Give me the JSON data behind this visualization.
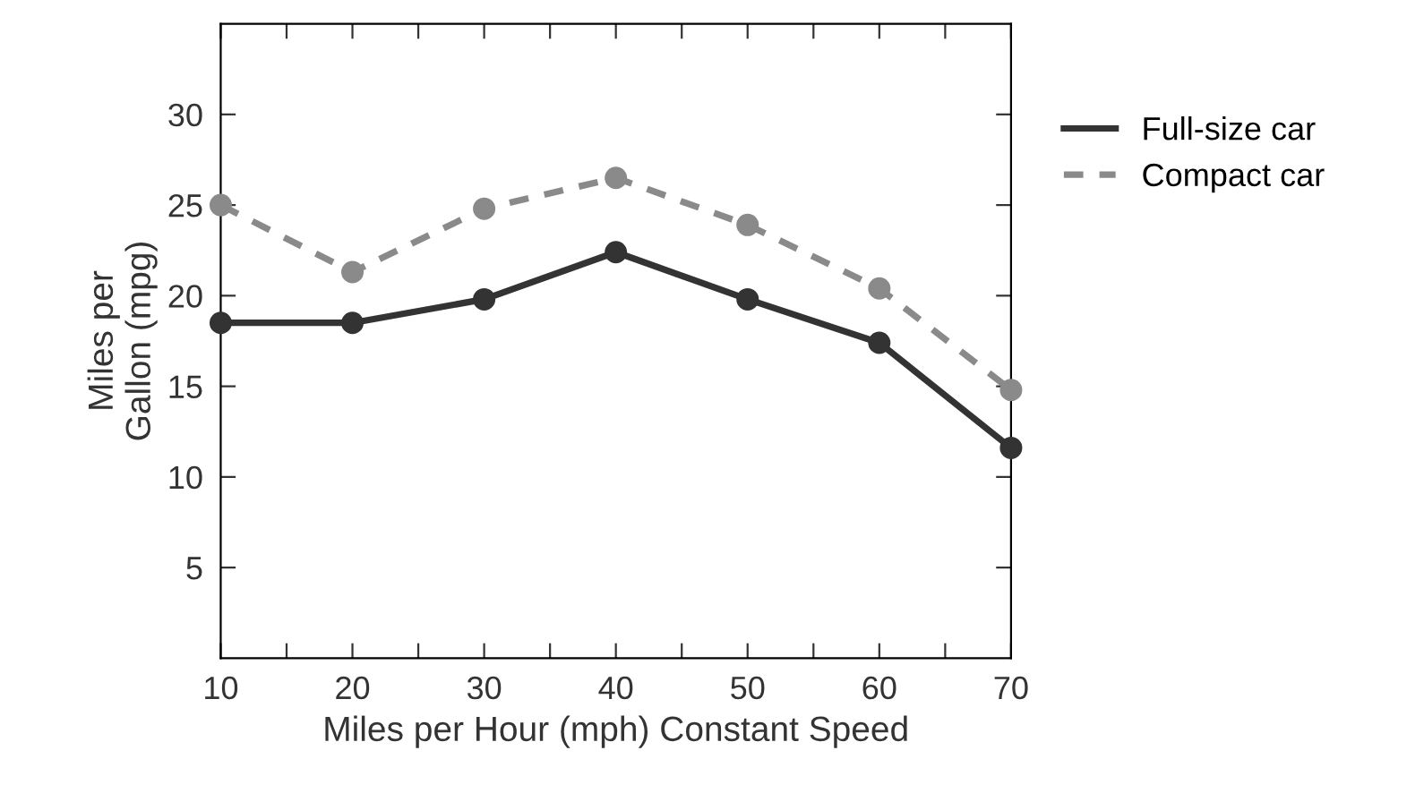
{
  "chart_data": {
    "type": "line",
    "xlabel": "Miles per Hour (mph) Constant Speed",
    "ylabel": "Miles per\nGallon (mpg)",
    "x": [
      10,
      20,
      30,
      40,
      50,
      60,
      70
    ],
    "series": [
      {
        "name": "Full-size car",
        "color": "#333333",
        "line_style": "solid",
        "values": [
          18.5,
          18.5,
          19.8,
          22.4,
          19.8,
          17.4,
          11.6
        ]
      },
      {
        "name": "Compact car",
        "color": "#8a8a8a",
        "line_style": "dashed",
        "values": [
          25,
          21.3,
          24.8,
          26.5,
          23.9,
          20.4,
          14.8
        ]
      }
    ],
    "xlim": [
      10,
      70
    ],
    "ylim": [
      0,
      35
    ],
    "xticks": [
      10,
      {
        "value": 15,
        "label": null
      },
      20,
      {
        "value": 25,
        "label": null
      },
      30,
      {
        "value": 35,
        "label": null
      },
      40,
      {
        "value": 45,
        "label": null
      },
      50,
      {
        "value": 55,
        "label": null
      },
      60,
      {
        "value": 65,
        "label": null
      },
      70
    ],
    "yticks": [
      5,
      10,
      15,
      20,
      25,
      30
    ],
    "marker": "circle",
    "grid": false,
    "legend": "top right"
  }
}
